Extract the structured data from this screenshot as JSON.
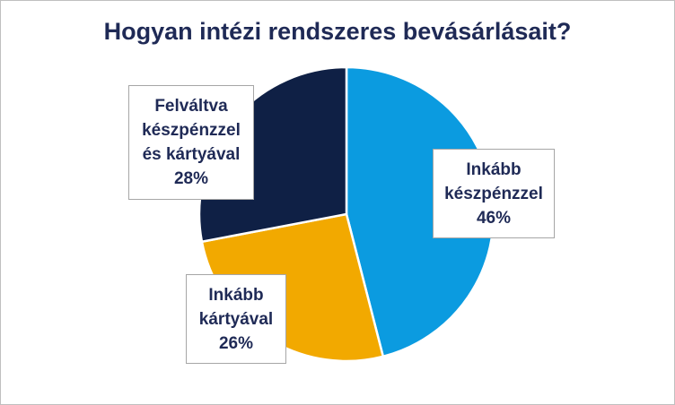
{
  "chart_data": {
    "type": "pie",
    "title": "Hogyan intézi rendszeres bevásárlásait?",
    "slices": [
      {
        "label_lines": [
          "Inkább",
          "készpénzzel"
        ],
        "value_label": "46%",
        "value": 46,
        "color": "#0b9be0"
      },
      {
        "label_lines": [
          "Inkább",
          "kártyával"
        ],
        "value_label": "26%",
        "value": 26,
        "color": "#f2a900"
      },
      {
        "label_lines": [
          "Felváltva",
          "készpénzzel",
          "és kártyával"
        ],
        "value_label": "28%",
        "value": 28,
        "color": "#0f2045"
      }
    ],
    "start_angle_deg": 0,
    "direction": "clockwise",
    "legend": "none"
  }
}
